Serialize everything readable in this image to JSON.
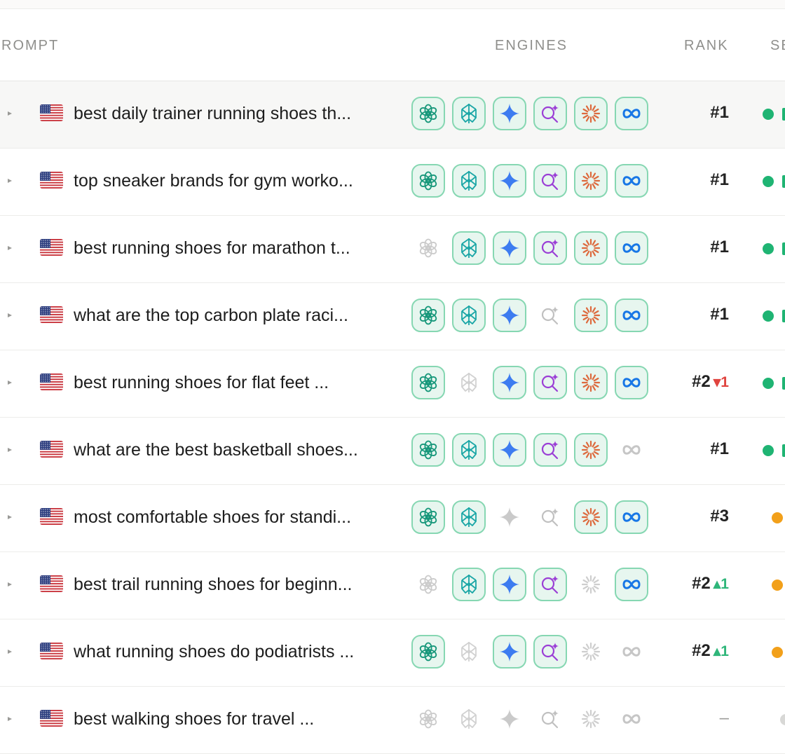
{
  "header": {
    "prompt": "ROMPT",
    "engines": "ENGINES",
    "rank": "RANK",
    "se": "SE"
  },
  "colors": {
    "engine_on_bg": "#e7f6ef",
    "engine_on_border": "#86d7b2",
    "status_green": "#1fb473",
    "status_orange": "#f2a01a",
    "rank_up": "#2fb67a",
    "rank_down": "#e0443f"
  },
  "engine_icons": [
    "chatgpt-icon",
    "perplexity-icon",
    "gemini-icon",
    "ai-search-icon",
    "claude-icon",
    "meta-ai-icon"
  ],
  "rows": [
    {
      "text": "best daily trainer running shoes th...",
      "engines": [
        1,
        1,
        1,
        1,
        1,
        1
      ],
      "rank": "#1",
      "change": "",
      "change_dir": "",
      "status": "green",
      "highlight": true
    },
    {
      "text": "top sneaker brands for gym worko...",
      "engines": [
        1,
        1,
        1,
        1,
        1,
        1
      ],
      "rank": "#1",
      "change": "",
      "change_dir": "",
      "status": "green",
      "highlight": false
    },
    {
      "text": "best running shoes for marathon t...",
      "engines": [
        0,
        1,
        1,
        1,
        1,
        1
      ],
      "rank": "#1",
      "change": "",
      "change_dir": "",
      "status": "green",
      "highlight": false
    },
    {
      "text": "what are the top carbon plate raci...",
      "engines": [
        1,
        1,
        1,
        0,
        1,
        1
      ],
      "rank": "#1",
      "change": "",
      "change_dir": "",
      "status": "green",
      "highlight": false
    },
    {
      "text": "best running shoes for flat feet ...",
      "engines": [
        1,
        0,
        1,
        1,
        1,
        1
      ],
      "rank": "#2",
      "change": "▾1",
      "change_dir": "down",
      "status": "green",
      "highlight": false
    },
    {
      "text": "what are the best basketball shoes...",
      "engines": [
        1,
        1,
        1,
        1,
        1,
        0
      ],
      "rank": "#1",
      "change": "",
      "change_dir": "",
      "status": "green",
      "highlight": false
    },
    {
      "text": "most comfortable shoes for standi...",
      "engines": [
        1,
        1,
        0,
        0,
        1,
        1
      ],
      "rank": "#3",
      "change": "",
      "change_dir": "",
      "status": "orange",
      "highlight": false
    },
    {
      "text": "best trail running shoes for beginn...",
      "engines": [
        0,
        1,
        1,
        1,
        0,
        1
      ],
      "rank": "#2",
      "change": "▴1",
      "change_dir": "up",
      "status": "orange",
      "highlight": false
    },
    {
      "text": "what running shoes do podiatrists ...",
      "engines": [
        1,
        0,
        1,
        1,
        0,
        0
      ],
      "rank": "#2",
      "change": "▴1",
      "change_dir": "up",
      "status": "orange",
      "highlight": false
    },
    {
      "text": "best walking shoes for travel ...",
      "engines": [
        0,
        0,
        0,
        0,
        0,
        0
      ],
      "rank": "–",
      "change": "",
      "change_dir": "",
      "status": "none",
      "highlight": false
    }
  ]
}
